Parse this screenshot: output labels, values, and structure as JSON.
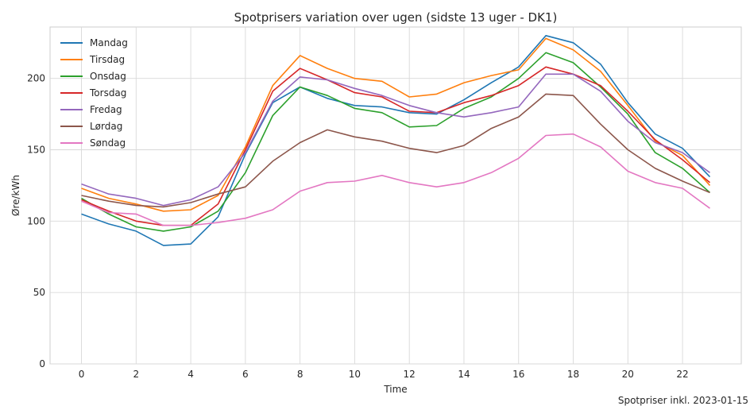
{
  "chart_data": {
    "type": "line",
    "title": "Spotprisers variation over ugen (sidste 13 uger - DK1)",
    "xlabel": "Time",
    "ylabel": "Øre/kWh",
    "footnote": "Spotpriser inkl. 2023-01-15",
    "xlim": [
      -1.15,
      24.15
    ],
    "ylim": [
      0,
      236
    ],
    "xticks": [
      0,
      2,
      4,
      6,
      8,
      10,
      12,
      14,
      16,
      18,
      20,
      22
    ],
    "yticks": [
      0,
      50,
      100,
      150,
      200
    ],
    "grid": true,
    "legend_position": "top-left",
    "x": [
      0,
      1,
      2,
      3,
      4,
      5,
      6,
      7,
      8,
      9,
      10,
      11,
      12,
      13,
      14,
      15,
      16,
      17,
      18,
      19,
      20,
      21,
      22,
      23
    ],
    "series": [
      {
        "name": "Mandag",
        "color": "#1f77b4",
        "values": [
          105,
          98,
          93,
          83,
          84,
          103,
          147,
          183,
          194,
          186,
          181,
          180,
          176,
          175,
          185,
          197,
          208,
          230,
          225,
          210,
          183,
          161,
          151,
          131
        ]
      },
      {
        "name": "Tirsdag",
        "color": "#ff7f0e",
        "values": [
          123,
          116,
          112,
          107,
          108,
          118,
          152,
          195,
          216,
          207,
          200,
          198,
          187,
          189,
          197,
          202,
          206,
          228,
          220,
          205,
          181,
          156,
          146,
          125
        ]
      },
      {
        "name": "Onsdag",
        "color": "#2ca02c",
        "values": [
          116,
          105,
          96,
          93,
          96,
          107,
          134,
          174,
          194,
          188,
          179,
          176,
          166,
          167,
          179,
          187,
          200,
          218,
          211,
          194,
          175,
          148,
          137,
          120
        ]
      },
      {
        "name": "Torsdag",
        "color": "#d62728",
        "values": [
          115,
          107,
          100,
          97,
          97,
          112,
          150,
          191,
          207,
          199,
          190,
          187,
          177,
          176,
          183,
          188,
          195,
          208,
          203,
          195,
          177,
          157,
          143,
          127
        ]
      },
      {
        "name": "Fredag",
        "color": "#9467bd",
        "values": [
          126,
          119,
          116,
          111,
          115,
          124,
          148,
          184,
          201,
          199,
          193,
          188,
          181,
          176,
          173,
          176,
          180,
          203,
          203,
          191,
          170,
          155,
          148,
          134
        ]
      },
      {
        "name": "Lørdag",
        "color": "#8c564b",
        "values": [
          118,
          114,
          111,
          110,
          113,
          119,
          124,
          142,
          155,
          164,
          159,
          156,
          151,
          148,
          153,
          165,
          173,
          189,
          188,
          168,
          150,
          137,
          128,
          120
        ]
      },
      {
        "name": "Søndag",
        "color": "#e377c2",
        "values": [
          114,
          106,
          105,
          97,
          97,
          99,
          102,
          108,
          121,
          127,
          128,
          132,
          127,
          124,
          127,
          134,
          144,
          160,
          161,
          152,
          135,
          127,
          123,
          109
        ]
      }
    ]
  }
}
